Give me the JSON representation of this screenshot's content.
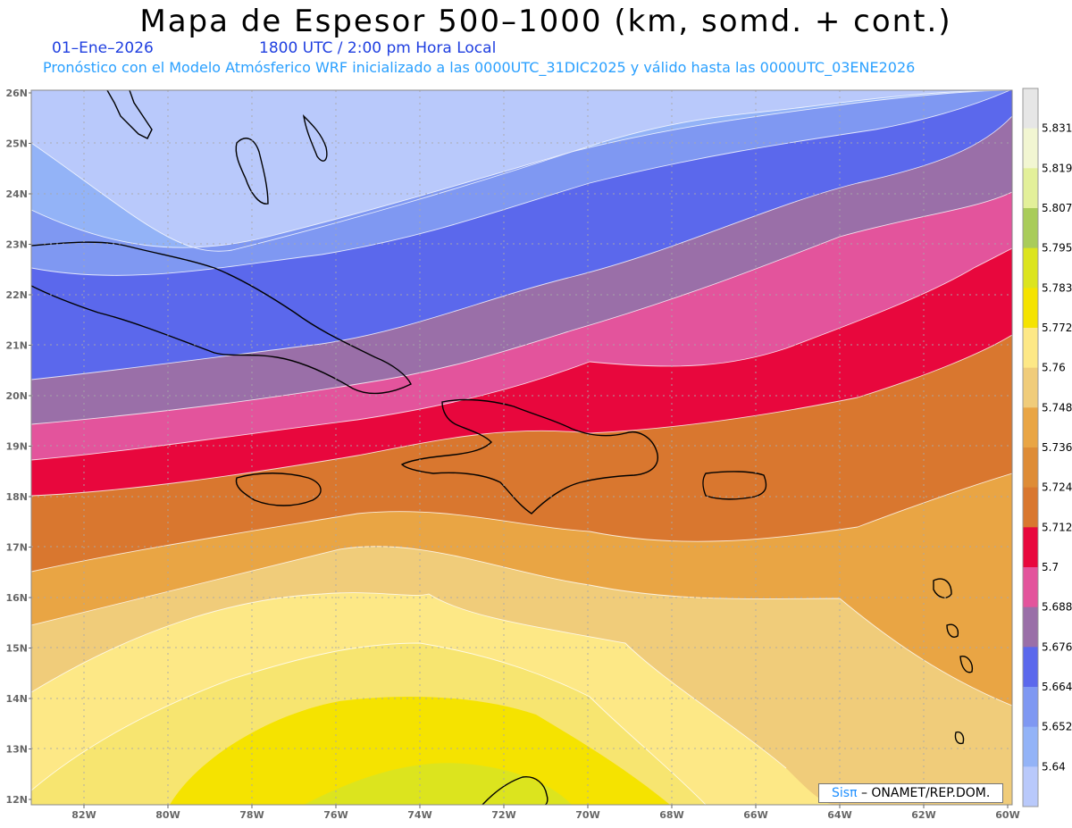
{
  "header": {
    "title": "Mapa de Espesor 500–1000 (km, somd. + cont.)",
    "date": "01–Ene–2026",
    "time": "1800 UTC / 2:00 pm Hora Local",
    "subtitle": "Pronóstico con el Modelo Atmósferico WRF inicializado a las 0000UTC_31DIC2025 y válido hasta las  0000UTC_03ENE2026"
  },
  "map": {
    "lat_labels": [
      "26N",
      "25N",
      "24N",
      "23N",
      "22N",
      "21N",
      "20N",
      "19N",
      "18N",
      "17N",
      "16N",
      "15N",
      "14N",
      "13N",
      "12N"
    ],
    "lon_labels": [
      "82W",
      "80W",
      "78W",
      "76W",
      "74W",
      "72W",
      "70W",
      "68W",
      "66W",
      "64W",
      "62W",
      "60W"
    ]
  },
  "colorbar": {
    "labels": [
      "5.831",
      "5.819",
      "5.807",
      "5.795",
      "5.783",
      "5.772",
      "5.76",
      "5.748",
      "5.736",
      "5.724",
      "5.712",
      "5.7",
      "5.688",
      "5.676",
      "5.664",
      "5.652",
      "5.64"
    ],
    "colors": [
      "#e6e6e6",
      "#f2f6d2",
      "#e3f09a",
      "#a9cc5a",
      "#dce41e",
      "#f5e300",
      "#fde886",
      "#f0cc7a",
      "#e9a544",
      "#de8c36",
      "#d9772f",
      "#e8073d",
      "#e3549c",
      "#9a6fa8",
      "#5b68ec",
      "#7f98f2",
      "#93b3f7",
      "#b9c9fb"
    ]
  },
  "credit": {
    "sis": "Sisπ",
    "rest": " – ONAMET/REP.DOM."
  }
}
